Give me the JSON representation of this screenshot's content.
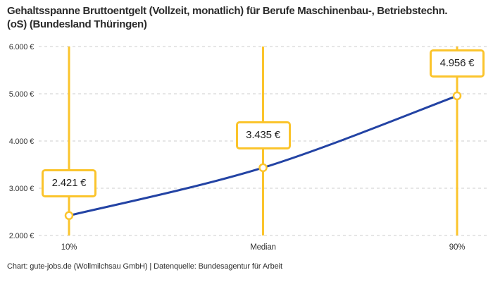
{
  "title": "Gehaltsspanne Bruttoentgelt (Vollzeit, monatlich) für Berufe Maschinenbau-, Betriebstechn.(oS) (Bundesland Thüringen)",
  "footer": "Chart: gute-jobs.de (Wollmilchsau GmbH) | Datenquelle: Bundesagentur für Arbeit",
  "colors": {
    "accent_yellow": "#FBC42C",
    "line_blue": "#2343A4",
    "grid": "#CCCCCC",
    "tick_text": "#333333",
    "value_text": "#1F1F1F"
  },
  "chart_data": {
    "type": "line",
    "title": "Gehaltsspanne Bruttoentgelt (Vollzeit, monatlich) für Berufe Maschinenbau-, Betriebstechn.(oS) (Bundesland Thüringen)",
    "categories": [
      "10%",
      "Median",
      "90%"
    ],
    "values": [
      2421,
      3435,
      4956
    ],
    "value_labels": [
      "2.421 €",
      "3.435 €",
      "4.956 €"
    ],
    "yticks": [
      {
        "label": "6.000 €",
        "value": 6000
      },
      {
        "label": "5.000 €",
        "value": 5000
      },
      {
        "label": "4.000 €",
        "value": 4000
      },
      {
        "label": "3.000 €",
        "value": 3000
      },
      {
        "label": "2.000 €",
        "value": 2000
      }
    ],
    "ylim": [
      2000,
      6000
    ],
    "xlabel": "",
    "ylabel": "",
    "grid": "horizontal-dashed",
    "legend": "none",
    "marker": "open-circle",
    "guide_lines": "vertical-at-each-category"
  }
}
